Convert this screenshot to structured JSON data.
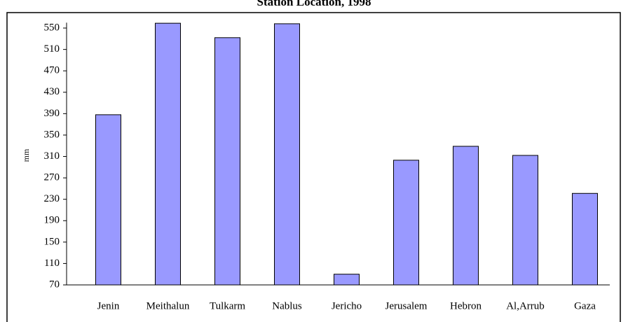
{
  "chart_data": {
    "type": "bar",
    "title": "Station Location, 1998",
    "y_label": "mm",
    "categories": [
      "Jenin",
      "Meithalun",
      "Tulkarm",
      "Nablus",
      "Jericho",
      "Jerusalem",
      "Hebron",
      "Al,Arrub",
      "Gaza"
    ],
    "values": [
      388,
      559,
      532,
      558,
      90,
      303,
      329,
      312,
      241
    ],
    "color": "#9999ff",
    "ylim": [
      70,
      560
    ],
    "yticks": [
      70,
      110,
      150,
      190,
      230,
      270,
      310,
      350,
      390,
      430,
      470,
      510,
      550
    ],
    "grid": false
  }
}
